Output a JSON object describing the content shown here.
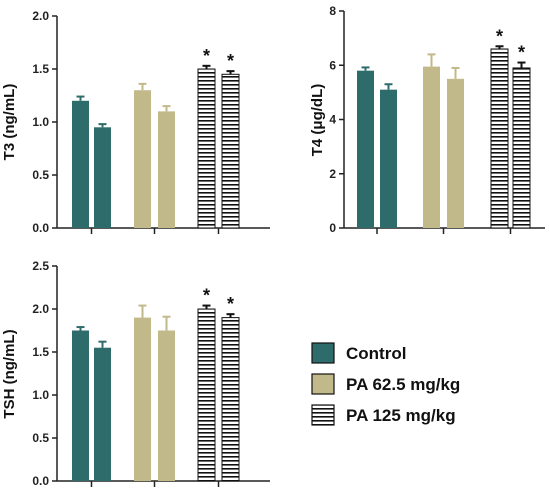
{
  "colors": {
    "control": "#2e6b6b",
    "pa_low": "#c2b98a",
    "pa_high_fill": "#ffffff",
    "pa_high_stripe": "#111111",
    "axis": "#222222"
  },
  "legend": {
    "items": [
      {
        "label": "Control",
        "pattern": "solid-teal"
      },
      {
        "label": "PA 62.5 mg/kg",
        "pattern": "solid-tan"
      },
      {
        "label": "PA 125 mg/kg",
        "pattern": "horizontal-stripes"
      }
    ]
  },
  "chart_data": [
    {
      "type": "bar",
      "ylabel": "T3 (ng/mL)",
      "ylim": [
        0,
        2.0
      ],
      "yticks": [
        "0.0",
        "0.5",
        "1.0",
        "1.5",
        "2.0"
      ],
      "ytick_values": [
        0,
        0.5,
        1.0,
        1.5,
        2.0
      ],
      "groups": [
        {
          "series": "Control",
          "values": [
            1.2,
            0.95
          ],
          "errors": [
            0.04,
            0.03
          ]
        },
        {
          "series": "PA 62.5 mg/kg",
          "values": [
            1.3,
            1.1
          ],
          "errors": [
            0.06,
            0.05
          ]
        },
        {
          "series": "PA 125 mg/kg",
          "values": [
            1.5,
            1.45
          ],
          "errors": [
            0.03,
            0.03
          ],
          "significance": [
            "*",
            "*"
          ]
        }
      ]
    },
    {
      "type": "bar",
      "ylabel": "T4 (μg/dL)",
      "ylim": [
        0,
        8
      ],
      "yticks": [
        "0",
        "2",
        "4",
        "6",
        "8"
      ],
      "ytick_values": [
        0,
        2,
        4,
        6,
        8
      ],
      "groups": [
        {
          "series": "Control",
          "values": [
            5.8,
            5.1
          ],
          "errors": [
            0.12,
            0.2
          ]
        },
        {
          "series": "PA 62.5 mg/kg",
          "values": [
            5.95,
            5.5
          ],
          "errors": [
            0.45,
            0.4
          ]
        },
        {
          "series": "PA 125 mg/kg",
          "values": [
            6.6,
            5.9
          ],
          "errors": [
            0.1,
            0.2
          ],
          "significance": [
            "*",
            "*"
          ]
        }
      ]
    },
    {
      "type": "bar",
      "ylabel": "TSH (ng/mL)",
      "ylim": [
        0,
        2.5
      ],
      "yticks": [
        "0.0",
        "0.5",
        "1.0",
        "1.5",
        "2.0",
        "2.5"
      ],
      "ytick_values": [
        0,
        0.5,
        1.0,
        1.5,
        2.0,
        2.5
      ],
      "groups": [
        {
          "series": "Control",
          "values": [
            1.75,
            1.55
          ],
          "errors": [
            0.04,
            0.07
          ]
        },
        {
          "series": "PA 62.5 mg/kg",
          "values": [
            1.9,
            1.75
          ],
          "errors": [
            0.14,
            0.16
          ]
        },
        {
          "series": "PA 125 mg/kg",
          "values": [
            2.0,
            1.9
          ],
          "errors": [
            0.04,
            0.04
          ],
          "significance": [
            "*",
            "*"
          ]
        }
      ]
    }
  ]
}
